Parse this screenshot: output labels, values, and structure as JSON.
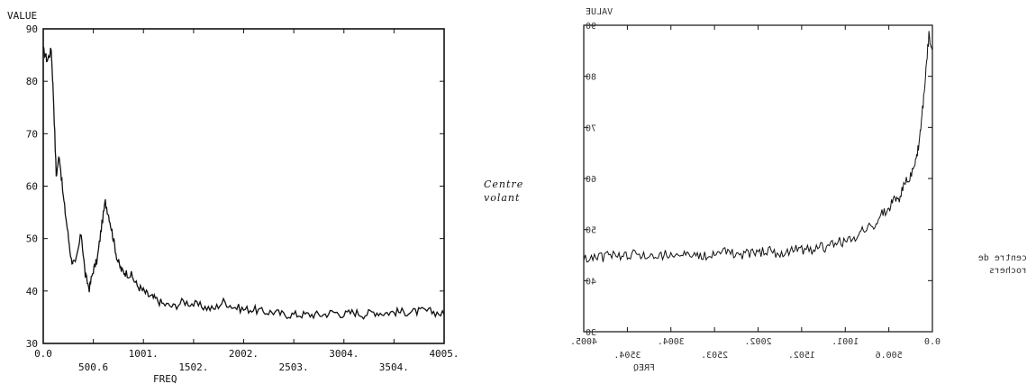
{
  "left_plot": {
    "ylabel": "VALUE",
    "xlabel": "FREQ",
    "xticks_top": [
      "0.0",
      "1001.",
      "2002.",
      "3004.",
      "4005."
    ],
    "xticks_bottom": [
      "500.6",
      "1502.",
      "2503.",
      "3504."
    ],
    "yticks": [
      "90",
      "80",
      "70",
      "60",
      "50",
      "40",
      "30"
    ]
  },
  "middle_label": {
    "line1": "Centre",
    "line2": "volant"
  },
  "right_plot": {
    "ylabel": "VALUE",
    "xlabel": "FREQ",
    "xticks_top": [
      "0.0",
      "1001.",
      "2002.",
      "3004.",
      "4005."
    ],
    "xticks_bottom": [
      "500.6",
      "1502.",
      "2503.",
      "3504."
    ],
    "yticks": [
      "90",
      "80",
      "70",
      "60",
      "50",
      "40",
      "30"
    ],
    "side_label": {
      "line1": "centre de",
      "line2": "rochers"
    }
  },
  "chart_data": [
    {
      "type": "line",
      "xlabel": "FREQ",
      "ylabel": "VALUE",
      "xlim": [
        0,
        4005
      ],
      "ylim": [
        30,
        90
      ],
      "grid": false,
      "series": [
        {
          "x": [
            0,
            40,
            80,
            100,
            130,
            160,
            200,
            240,
            280,
            320,
            380,
            420,
            460,
            500,
            540,
            580,
            620,
            660,
            700,
            740,
            780,
            820,
            880,
            940,
            1001,
            1060,
            1120,
            1200,
            1300,
            1400,
            1502,
            1600,
            1700,
            1800,
            1900,
            2002,
            2100,
            2200,
            2300,
            2400,
            2503,
            2600,
            2700,
            2800,
            2900,
            3004,
            3100,
            3200,
            3300,
            3400,
            3504,
            3600,
            3700,
            3800,
            3900,
            4005
          ],
          "y": [
            86,
            84,
            86,
            78,
            62,
            66,
            58,
            52,
            46,
            45,
            51,
            43,
            40.5,
            44,
            46,
            52,
            57,
            54,
            50,
            46,
            44,
            43.5,
            43,
            41,
            40,
            39,
            38.5,
            37.5,
            37,
            38,
            37.5,
            37,
            36.5,
            38,
            37,
            36.5,
            36.5,
            36,
            36,
            35.5,
            35.5,
            35.5,
            35.5,
            35.5,
            36,
            35.5,
            36,
            35.5,
            36,
            35.8,
            36,
            36,
            36,
            36.2,
            36,
            35.5
          ]
        }
      ]
    },
    {
      "type": "line",
      "xlabel": "FREQ",
      "ylabel": "VALUE",
      "xlim": [
        0,
        4005
      ],
      "ylim": [
        30,
        90
      ],
      "grid": false,
      "series": [
        {
          "x": [
            0,
            40,
            80,
            120,
            160,
            200,
            260,
            320,
            380,
            440,
            500,
            580,
            660,
            740,
            820,
            900,
            1001,
            1100,
            1200,
            1300,
            1400,
            1502,
            1600,
            1700,
            1800,
            1900,
            2002,
            2100,
            2200,
            2300,
            2400,
            2503,
            2600,
            2700,
            2800,
            2900,
            3004,
            3100,
            3200,
            3300,
            3400,
            3504,
            3600,
            3700,
            3800,
            3900,
            4005
          ],
          "y": [
            86,
            88,
            80,
            72,
            66,
            63,
            60,
            59,
            56,
            56,
            54,
            53,
            51,
            50.5,
            49.5,
            48.5,
            47.5,
            47.5,
            46.5,
            46.5,
            46,
            46,
            46,
            45.5,
            45.5,
            46,
            45.5,
            45.5,
            45,
            45.5,
            45.5,
            45.5,
            45,
            45,
            45,
            45.5,
            45.5,
            45,
            45,
            45,
            45.5,
            45,
            45,
            45,
            44.5,
            44.5,
            44
          ]
        }
      ]
    }
  ]
}
